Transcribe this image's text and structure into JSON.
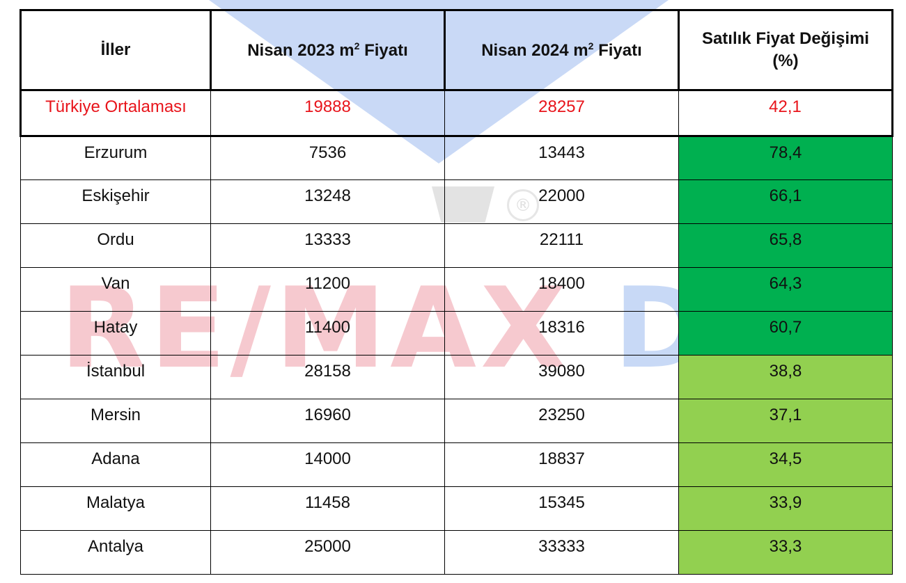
{
  "table": {
    "headers": {
      "col1": "İller",
      "col2_prefix": "Nisan 2023 m",
      "col2_sup": "2",
      "col2_suffix": " Fiyatı",
      "col3_prefix": "Nisan 2024 m",
      "col3_sup": "2",
      "col3_suffix": " Fiyatı",
      "col4_line1": "Satılık Fiyat Değişimi",
      "col4_line2": "(%)"
    },
    "average": {
      "name": "Türkiye Ortalaması",
      "p2023": "19888",
      "p2024": "28257",
      "change": "42,1"
    },
    "rows": [
      {
        "name": "Erzurum",
        "p2023": "7536",
        "p2024": "13443",
        "change": "78,4",
        "highlight": "dark"
      },
      {
        "name": "Eskişehir",
        "p2023": "13248",
        "p2024": "22000",
        "change": "66,1",
        "highlight": "dark"
      },
      {
        "name": "Ordu",
        "p2023": "13333",
        "p2024": "22111",
        "change": "65,8",
        "highlight": "dark"
      },
      {
        "name": "Van",
        "p2023": "11200",
        "p2024": "18400",
        "change": "64,3",
        "highlight": "dark"
      },
      {
        "name": "Hatay",
        "p2023": "11400",
        "p2024": "18316",
        "change": "60,7",
        "highlight": "dark"
      },
      {
        "name": "İstanbul",
        "p2023": "28158",
        "p2024": "39080",
        "change": "38,8",
        "highlight": "light"
      },
      {
        "name": "Mersin",
        "p2023": "16960",
        "p2024": "23250",
        "change": "37,1",
        "highlight": "light"
      },
      {
        "name": "Adana",
        "p2023": "14000",
        "p2024": "18837",
        "change": "34,5",
        "highlight": "light"
      },
      {
        "name": "Malatya",
        "p2023": "11458",
        "p2024": "15345",
        "change": "33,9",
        "highlight": "light"
      },
      {
        "name": "Antalya",
        "p2023": "25000",
        "p2024": "33333",
        "change": "33,3",
        "highlight": "light"
      }
    ]
  },
  "colors": {
    "dark_green": "#00b050",
    "light_green": "#92d050",
    "average_text": "#e8141b"
  },
  "watermark": {
    "text_red": "RE/MAX",
    "text_blue": "DE",
    "registered": "®"
  }
}
